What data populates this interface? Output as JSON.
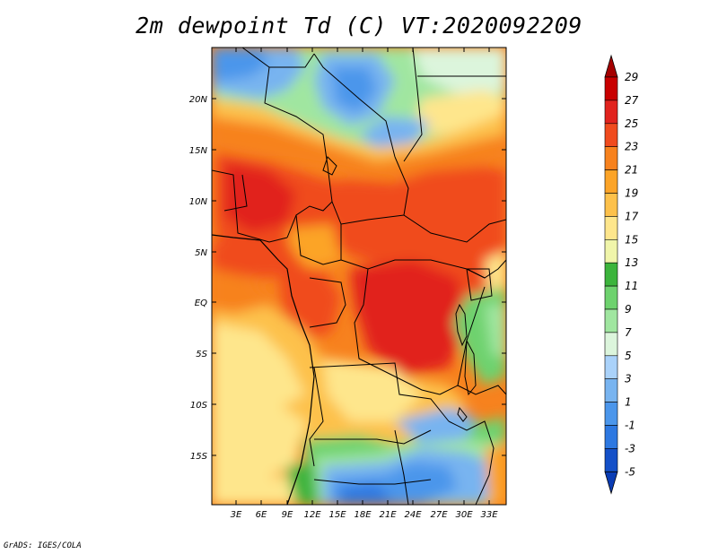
{
  "title": "2m dewpoint Td (C) VT:2020092209",
  "credit": "GrADS: IGES/COLA",
  "lat_labels": [
    "20N",
    "15N",
    "10N",
    "5N",
    "EQ",
    "5S",
    "10S",
    "15S"
  ],
  "lon_labels": [
    "3E",
    "6E",
    "9E",
    "12E",
    "15E",
    "18E",
    "21E",
    "24E",
    "27E",
    "30E",
    "33E"
  ],
  "colorbar": {
    "labels": [
      "29",
      "27",
      "25",
      "23",
      "21",
      "19",
      "17",
      "15",
      "13",
      "11",
      "9",
      "7",
      "5",
      "3",
      "1",
      "-1",
      "-3",
      "-5"
    ],
    "colors": [
      "#a50000",
      "#c80000",
      "#e1231e",
      "#f04b1e",
      "#f7821e",
      "#fca428",
      "#fdc14b",
      "#fee68c",
      "#f0f5aa",
      "#3cb43c",
      "#6ed26e",
      "#a0e6a0",
      "#dcf5dc",
      "#aad2fa",
      "#78b4f0",
      "#4b96eb",
      "#2d78e1",
      "#1450c8",
      "#0a3cb4"
    ]
  }
}
